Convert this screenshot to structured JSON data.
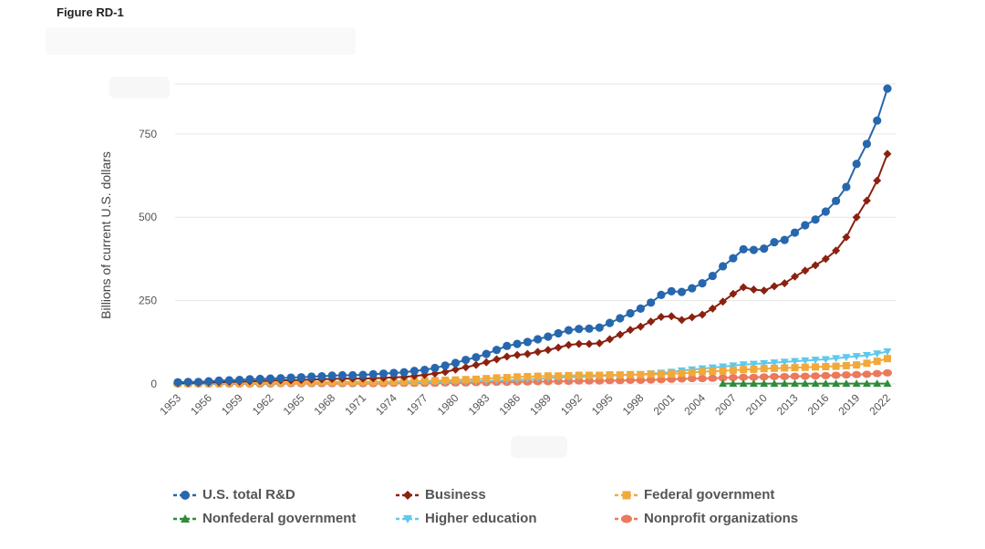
{
  "figure_title": "Figure RD-1",
  "chart_data": {
    "type": "line",
    "title": "",
    "xlabel": "",
    "ylabel": "Billions of current U.S. dollars",
    "ylim": [
      0,
      900
    ],
    "yticks": [
      0,
      250,
      500,
      750
    ],
    "x_tick_labels": [
      "1953",
      "1956",
      "1959",
      "1962",
      "1965",
      "1968",
      "1971",
      "1974",
      "1977",
      "1980",
      "1983",
      "1986",
      "1989",
      "1992",
      "1995",
      "1998",
      "2001",
      "2004",
      "2007",
      "2010",
      "2013",
      "2016",
      "2019",
      "2022"
    ],
    "x": [
      1953,
      1954,
      1955,
      1956,
      1957,
      1958,
      1959,
      1960,
      1961,
      1962,
      1963,
      1964,
      1965,
      1966,
      1967,
      1968,
      1969,
      1970,
      1971,
      1972,
      1973,
      1974,
      1975,
      1976,
      1977,
      1978,
      1979,
      1980,
      1981,
      1982,
      1983,
      1984,
      1985,
      1986,
      1987,
      1988,
      1989,
      1990,
      1991,
      1992,
      1993,
      1994,
      1995,
      1996,
      1997,
      1998,
      1999,
      2000,
      2001,
      2002,
      2003,
      2004,
      2005,
      2006,
      2007,
      2008,
      2009,
      2010,
      2011,
      2012,
      2013,
      2014,
      2015,
      2016,
      2017,
      2018,
      2019,
      2020,
      2021,
      2022
    ],
    "series": [
      {
        "name": "U.S. total R&D",
        "color": "#2767ad",
        "marker": "circle",
        "values": [
          5,
          6,
          6,
          8,
          10,
          11,
          12,
          14,
          15,
          16,
          17,
          19,
          20,
          22,
          23,
          25,
          26,
          26,
          27,
          29,
          31,
          33,
          35,
          39,
          42,
          48,
          55,
          63,
          72,
          80,
          90,
          102,
          114,
          120,
          126,
          134,
          142,
          152,
          161,
          165,
          166,
          169,
          183,
          197,
          212,
          226,
          244,
          267,
          278,
          276,
          287,
          302,
          324,
          353,
          377,
          404,
          402,
          406,
          425,
          432,
          454,
          476,
          493,
          517,
          549,
          591,
          660,
          720,
          790,
          886
        ]
      },
      {
        "name": "Business",
        "color": "#8b2211",
        "marker": "diamond",
        "values": [
          2,
          3,
          3,
          4,
          5,
          6,
          7,
          8,
          9,
          10,
          11,
          11,
          12,
          13,
          14,
          15,
          16,
          16,
          16,
          17,
          18,
          20,
          21,
          24,
          27,
          31,
          36,
          43,
          50,
          57,
          65,
          74,
          82,
          87,
          90,
          96,
          102,
          109,
          117,
          120,
          120,
          122,
          134,
          148,
          162,
          172,
          187,
          201,
          203,
          192,
          200,
          208,
          226,
          247,
          270,
          290,
          283,
          280,
          293,
          302,
          322,
          340,
          356,
          375,
          400,
          440,
          500,
          550,
          610,
          690
        ]
      },
      {
        "name": "Federal government",
        "color": "#f2a93b",
        "marker": "square",
        "values": [
          2,
          2,
          2,
          3,
          3,
          3,
          3,
          3,
          4,
          4,
          4,
          5,
          5,
          5,
          6,
          6,
          6,
          6,
          7,
          7,
          7,
          7,
          8,
          8,
          9,
          10,
          11,
          12,
          13,
          14,
          16,
          18,
          19,
          21,
          22,
          23,
          24,
          24,
          25,
          26,
          26,
          26,
          27,
          27,
          28,
          28,
          29,
          29,
          30,
          32,
          34,
          37,
          38,
          39,
          41,
          43,
          44,
          46,
          47,
          48,
          49,
          50,
          51,
          52,
          53,
          55,
          57,
          62,
          68,
          76
        ]
      },
      {
        "name": "Nonfederal government",
        "color": "#2e8b3c",
        "marker": "triangle-up",
        "values": [
          null,
          null,
          null,
          null,
          null,
          null,
          null,
          null,
          null,
          null,
          null,
          null,
          null,
          null,
          null,
          null,
          null,
          null,
          null,
          null,
          null,
          null,
          null,
          null,
          null,
          null,
          null,
          null,
          null,
          null,
          null,
          null,
          null,
          null,
          null,
          null,
          null,
          null,
          null,
          null,
          null,
          null,
          null,
          null,
          null,
          null,
          null,
          null,
          null,
          null,
          null,
          null,
          null,
          1,
          1,
          1,
          1,
          1,
          1,
          1,
          1,
          1,
          1,
          1,
          1,
          1,
          1,
          1,
          1,
          1
        ]
      },
      {
        "name": "Higher education",
        "color": "#5fc8ec",
        "marker": "triangle-down",
        "values": [
          0,
          0,
          0,
          1,
          1,
          1,
          1,
          1,
          1,
          1,
          2,
          2,
          2,
          2,
          3,
          3,
          3,
          3,
          3,
          3,
          3,
          4,
          4,
          4,
          5,
          5,
          6,
          7,
          7,
          8,
          9,
          10,
          11,
          12,
          14,
          15,
          17,
          19,
          20,
          21,
          22,
          24,
          25,
          26,
          27,
          29,
          31,
          33,
          36,
          40,
          43,
          46,
          49,
          52,
          55,
          58,
          60,
          62,
          64,
          66,
          68,
          70,
          72,
          74,
          77,
          80,
          83,
          86,
          91,
          97
        ]
      },
      {
        "name": "Nonprofit organizations",
        "color": "#ea7a5b",
        "marker": "circle-flat",
        "values": [
          0,
          0,
          0,
          0,
          0,
          0,
          0,
          0,
          0,
          0,
          1,
          1,
          1,
          1,
          1,
          1,
          1,
          1,
          1,
          1,
          1,
          2,
          2,
          2,
          2,
          2,
          3,
          3,
          3,
          4,
          4,
          5,
          5,
          6,
          6,
          7,
          7,
          8,
          8,
          9,
          9,
          9,
          10,
          10,
          11,
          11,
          12,
          13,
          14,
          15,
          16,
          16,
          17,
          18,
          19,
          20,
          20,
          21,
          22,
          22,
          23,
          23,
          24,
          25,
          26,
          27,
          28,
          29,
          31,
          33
        ]
      }
    ]
  }
}
